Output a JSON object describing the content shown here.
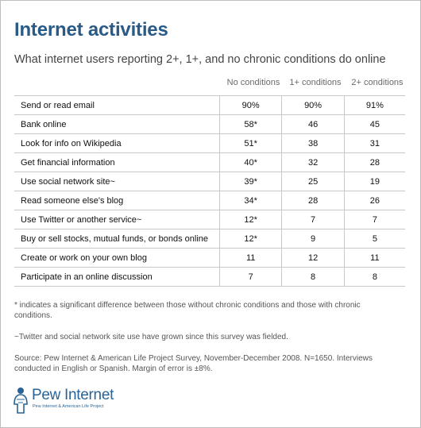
{
  "title": "Internet activities",
  "subtitle": "What internet users reporting 2+, 1+, and no chronic conditions do online",
  "columns": [
    "No conditions",
    "1+ conditions",
    "2+ conditions"
  ],
  "rows": [
    {
      "label": "Send or read email",
      "values": [
        "90%",
        "90%",
        "91%"
      ]
    },
    {
      "label": "Bank online",
      "values": [
        "58*",
        "46",
        "45"
      ]
    },
    {
      "label": "Look for info on Wikipedia",
      "values": [
        "51*",
        "38",
        "31"
      ]
    },
    {
      "label": "Get financial information",
      "values": [
        "40*",
        "32",
        "28"
      ]
    },
    {
      "label": "Use social network site~",
      "values": [
        "39*",
        "25",
        "19"
      ]
    },
    {
      "label": "Read someone else's blog",
      "values": [
        "34*",
        "28",
        "26"
      ]
    },
    {
      "label": "Use Twitter or another service~",
      "values": [
        "12*",
        "7",
        "7"
      ]
    },
    {
      "label": "Buy or sell stocks, mutual funds, or bonds online",
      "values": [
        "12*",
        "9",
        "5"
      ]
    },
    {
      "label": "Create or work on your own blog",
      "values": [
        "11",
        "12",
        "11"
      ]
    },
    {
      "label": "Participate in an online discussion",
      "values": [
        "7",
        "8",
        "8"
      ]
    }
  ],
  "notes": {
    "significance": "* indicates a significant difference between those without chronic conditions and those with chronic conditions.",
    "twitter": "~Twitter and social network site use have grown since this survey was fielded.",
    "source": "Source: Pew Internet & American Life Project Survey, November-December 2008. N=1650. Interviews conducted in English or Spanish.  Margin of error is ±8%."
  },
  "logo": {
    "name": "Pew Internet",
    "tagline": "Pew Internet & American Life Project",
    "icon": "pew-figure-icon"
  },
  "colors": {
    "title": "#2a5a86",
    "logo": "#2a6496",
    "rule": "#c8c8c8"
  }
}
